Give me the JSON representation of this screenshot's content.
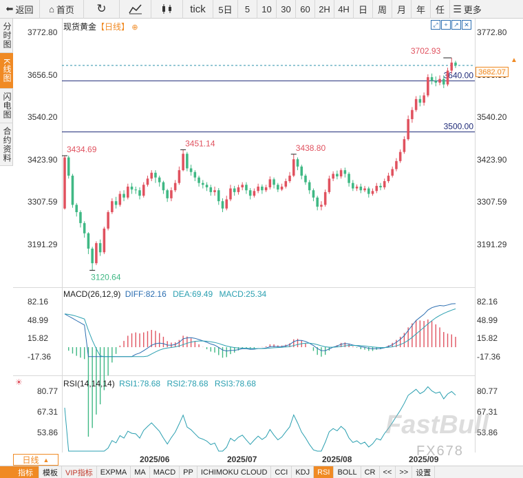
{
  "toolbar": {
    "items": [
      {
        "icon": "back-icon",
        "label": "返回"
      },
      {
        "icon": "home-icon",
        "label": "首页"
      },
      {
        "icon": "refresh-icon",
        "label": ""
      },
      {
        "icon": "line-chart-icon",
        "label": ""
      },
      {
        "icon": "candlestick-icon",
        "label": ""
      },
      {
        "icon": "",
        "label": "tick"
      },
      {
        "icon": "",
        "label": "5日"
      },
      {
        "icon": "",
        "label": "5"
      },
      {
        "icon": "",
        "label": "10"
      },
      {
        "icon": "",
        "label": "30"
      },
      {
        "icon": "",
        "label": "60"
      },
      {
        "icon": "",
        "label": "2H"
      },
      {
        "icon": "",
        "label": "4H"
      },
      {
        "icon": "",
        "label": "日"
      },
      {
        "icon": "",
        "label": "周"
      },
      {
        "icon": "",
        "label": "月"
      },
      {
        "icon": "",
        "label": "年"
      },
      {
        "icon": "",
        "label": "任"
      },
      {
        "icon": "menu-icon",
        "label": "更多"
      }
    ]
  },
  "side_tabs": [
    {
      "label": "分时图",
      "active": false
    },
    {
      "label": "K线图",
      "active": true
    },
    {
      "label": "闪电图",
      "active": false
    },
    {
      "label": "合约资料",
      "active": false
    }
  ],
  "main_title": {
    "name": "现货黄金",
    "period": "【日线】",
    "icon": "settings-circle-icon"
  },
  "price_axis": [
    "3772.80",
    "3656.50",
    "3540.20",
    "3423.90",
    "3307.59",
    "3191.29"
  ],
  "current_price": "3682.07",
  "colors": {
    "up": "#e0525f",
    "down": "#3fb884",
    "accent": "#f08a24",
    "navy": "#1e2a78",
    "dash": "#2a8fa8"
  },
  "chart_data": {
    "type": "candlestick",
    "y_range": [
      3120,
      3790
    ],
    "annotations": {
      "low": "3120.64",
      "high1": "3434.69",
      "high2": "3451.14",
      "high3": "3438.80",
      "high4": "3702.93"
    },
    "horizontal_lines": [
      {
        "value": 3640.0,
        "label": "3640.00"
      },
      {
        "value": 3500.0,
        "label": "3500.00"
      }
    ],
    "candles": [
      [
        3290,
        3430,
        3287,
        3434.69
      ],
      [
        3430,
        3380,
        3372,
        3435
      ],
      [
        3380,
        3300,
        3292,
        3385
      ],
      [
        3300,
        3280,
        3268,
        3305
      ],
      [
        3280,
        3250,
        3238,
        3285
      ],
      [
        3250,
        3222,
        3210,
        3255
      ],
      [
        3222,
        3180,
        3165,
        3225
      ],
      [
        3180,
        3140,
        3120.64,
        3185
      ],
      [
        3140,
        3195,
        3135,
        3200
      ],
      [
        3195,
        3170,
        3160,
        3205
      ],
      [
        3170,
        3235,
        3165,
        3240
      ],
      [
        3235,
        3280,
        3230,
        3285
      ],
      [
        3280,
        3310,
        3275,
        3318
      ],
      [
        3310,
        3300,
        3290,
        3322
      ],
      [
        3300,
        3330,
        3295,
        3338
      ],
      [
        3330,
        3320,
        3310,
        3340
      ],
      [
        3320,
        3350,
        3315,
        3358
      ],
      [
        3350,
        3342,
        3330,
        3360
      ],
      [
        3342,
        3340,
        3330,
        3350
      ],
      [
        3340,
        3325,
        3315,
        3348
      ],
      [
        3325,
        3355,
        3320,
        3362
      ],
      [
        3355,
        3372,
        3350,
        3380
      ],
      [
        3372,
        3388,
        3365,
        3395
      ],
      [
        3388,
        3375,
        3360,
        3395
      ],
      [
        3375,
        3362,
        3350,
        3380
      ],
      [
        3362,
        3340,
        3330,
        3366
      ],
      [
        3340,
        3318,
        3308,
        3344
      ],
      [
        3318,
        3340,
        3310,
        3348
      ],
      [
        3340,
        3360,
        3335,
        3368
      ],
      [
        3360,
        3395,
        3355,
        3405
      ],
      [
        3395,
        3440,
        3392,
        3451.14
      ],
      [
        3440,
        3400,
        3392,
        3445
      ],
      [
        3400,
        3390,
        3380,
        3410
      ],
      [
        3390,
        3375,
        3365,
        3395
      ],
      [
        3375,
        3360,
        3350,
        3380
      ],
      [
        3360,
        3355,
        3345,
        3368
      ],
      [
        3355,
        3348,
        3338,
        3362
      ],
      [
        3348,
        3335,
        3325,
        3355
      ],
      [
        3335,
        3340,
        3325,
        3350
      ],
      [
        3340,
        3310,
        3300,
        3346
      ],
      [
        3310,
        3290,
        3280,
        3318
      ],
      [
        3290,
        3315,
        3285,
        3325
      ],
      [
        3315,
        3345,
        3310,
        3355
      ],
      [
        3345,
        3335,
        3325,
        3352
      ],
      [
        3335,
        3348,
        3328,
        3355
      ],
      [
        3348,
        3355,
        3340,
        3362
      ],
      [
        3355,
        3340,
        3330,
        3362
      ],
      [
        3340,
        3325,
        3315,
        3346
      ],
      [
        3325,
        3338,
        3320,
        3345
      ],
      [
        3338,
        3350,
        3332,
        3358
      ],
      [
        3350,
        3340,
        3330,
        3356
      ],
      [
        3340,
        3348,
        3335,
        3355
      ],
      [
        3348,
        3370,
        3342,
        3378
      ],
      [
        3370,
        3355,
        3345,
        3375
      ],
      [
        3355,
        3342,
        3335,
        3360
      ],
      [
        3342,
        3350,
        3338,
        3358
      ],
      [
        3350,
        3365,
        3345,
        3372
      ],
      [
        3365,
        3380,
        3360,
        3390
      ],
      [
        3380,
        3425,
        3376,
        3438.8
      ],
      [
        3425,
        3405,
        3395,
        3430
      ],
      [
        3405,
        3380,
        3370,
        3410
      ],
      [
        3380,
        3362,
        3355,
        3385
      ],
      [
        3362,
        3340,
        3330,
        3368
      ],
      [
        3340,
        3320,
        3310,
        3345
      ],
      [
        3320,
        3295,
        3285,
        3325
      ],
      [
        3295,
        3300,
        3285,
        3310
      ],
      [
        3300,
        3335,
        3295,
        3342
      ],
      [
        3335,
        3372,
        3330,
        3380
      ],
      [
        3372,
        3385,
        3365,
        3392
      ],
      [
        3385,
        3378,
        3370,
        3394
      ],
      [
        3378,
        3395,
        3372,
        3400
      ],
      [
        3395,
        3385,
        3375,
        3402
      ],
      [
        3385,
        3360,
        3350,
        3390
      ],
      [
        3360,
        3345,
        3338,
        3368
      ],
      [
        3345,
        3350,
        3338,
        3356
      ],
      [
        3350,
        3340,
        3332,
        3358
      ],
      [
        3340,
        3345,
        3335,
        3352
      ],
      [
        3345,
        3330,
        3320,
        3350
      ],
      [
        3330,
        3338,
        3325,
        3345
      ],
      [
        3338,
        3352,
        3332,
        3360
      ],
      [
        3352,
        3348,
        3340,
        3360
      ],
      [
        3348,
        3365,
        3342,
        3372
      ],
      [
        3365,
        3380,
        3360,
        3388
      ],
      [
        3380,
        3398,
        3375,
        3405
      ],
      [
        3398,
        3420,
        3392,
        3428
      ],
      [
        3420,
        3445,
        3415,
        3452
      ],
      [
        3445,
        3480,
        3440,
        3488
      ],
      [
        3480,
        3535,
        3476,
        3545
      ],
      [
        3535,
        3560,
        3525,
        3568
      ],
      [
        3560,
        3590,
        3555,
        3598
      ],
      [
        3590,
        3580,
        3570,
        3600
      ],
      [
        3580,
        3600,
        3572,
        3608
      ],
      [
        3600,
        3650,
        3595,
        3658
      ],
      [
        3650,
        3640,
        3630,
        3660
      ],
      [
        3640,
        3635,
        3625,
        3652
      ],
      [
        3635,
        3645,
        3628,
        3655
      ],
      [
        3645,
        3630,
        3620,
        3655
      ],
      [
        3630,
        3668,
        3625,
        3676
      ],
      [
        3668,
        3690,
        3660,
        3702.93
      ],
      [
        3690,
        3682.07,
        3675,
        3695
      ]
    ]
  },
  "macd": {
    "title": "MACD(26,12,9)",
    "diff": "DIFF:82.16",
    "dea": "DEA:69.49",
    "macd": "MACD:25.34",
    "axis": [
      "82.16",
      "48.99",
      "15.82",
      "-17.36"
    ]
  },
  "rsi": {
    "title": "RSI(14,14,14)",
    "rsi1": "RSI1:78.68",
    "rsi2": "RSI2:78.68",
    "rsi3": "RSI3:78.68",
    "axis": [
      "80.77",
      "67.31",
      "53.86"
    ]
  },
  "date_labels": [
    "2025/06",
    "2025/07",
    "2025/08",
    "2025/09"
  ],
  "period_selector": "日线",
  "bottom_tabs": [
    {
      "label": "指标",
      "active": true
    },
    {
      "label": "模板",
      "active": false
    },
    {
      "label": "VIP指标",
      "active": false,
      "vip": true
    },
    {
      "label": "EXPMA",
      "active": false
    },
    {
      "label": "MA",
      "active": false
    },
    {
      "label": "MACD",
      "active": false
    },
    {
      "label": "PP",
      "active": false
    },
    {
      "label": "ICHIMOKU CLOUD",
      "active": false
    },
    {
      "label": "CCI",
      "active": false
    },
    {
      "label": "KDJ",
      "active": false
    },
    {
      "label": "RSI",
      "active": true
    },
    {
      "label": "BOLL",
      "active": false
    },
    {
      "label": "CR",
      "active": false
    },
    {
      "label": "<<",
      "active": false
    },
    {
      "label": ">>",
      "active": false
    },
    {
      "label": "设置",
      "active": false
    }
  ],
  "watermark": {
    "line1": "FastBull",
    "line2": "FX678"
  }
}
